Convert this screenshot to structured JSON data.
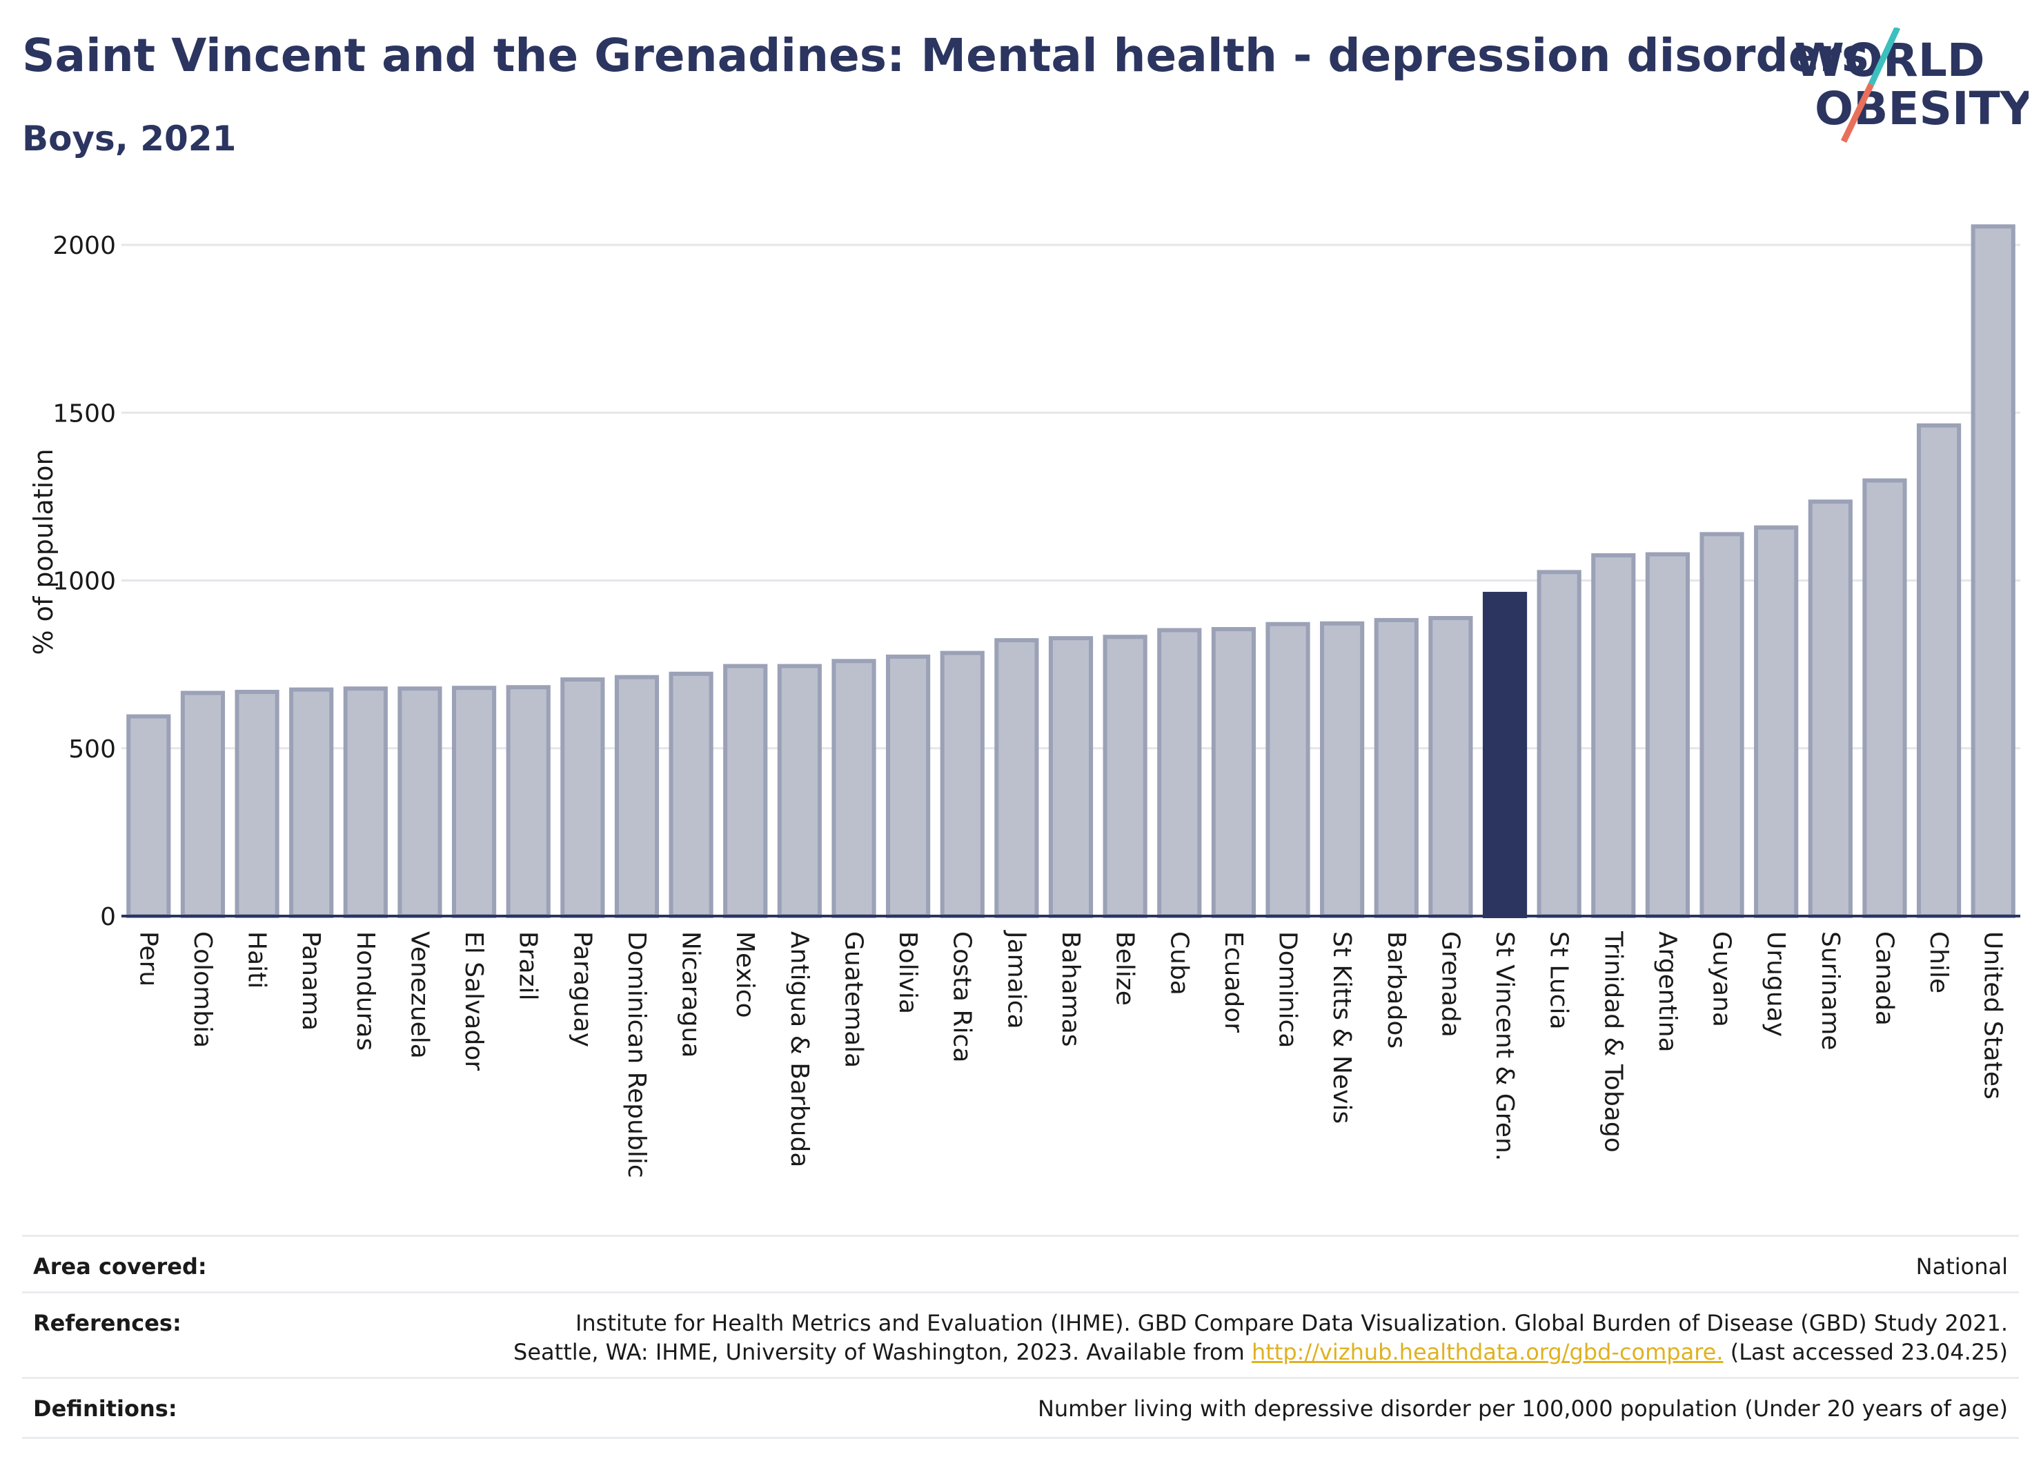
{
  "header": {
    "title": "Saint Vincent and the Grenadines: Mental health - depression disorders",
    "subtitle": "Boys, 2021"
  },
  "logo": {
    "line1": "WORLD",
    "line2": "OBESITY"
  },
  "colors": {
    "bar": "#bcc0cd",
    "bar_border": "#9ba1b6",
    "highlight": "#2b3560",
    "grid": "#e4e6ea",
    "accent_teal": "#3dbfbf",
    "accent_coral": "#e8705a"
  },
  "chart_data": {
    "type": "bar",
    "ylabel": "% of population",
    "xlabel": "",
    "ylim": [
      0,
      2100
    ],
    "yticks": [
      0,
      500,
      1000,
      1500,
      2000
    ],
    "grid": true,
    "highlight": "St Vincent & Gren.",
    "categories": [
      "Peru",
      "Colombia",
      "Haiti",
      "Panama",
      "Honduras",
      "Venezuela",
      "El Salvador",
      "Brazil",
      "Paraguay",
      "Dominican Republic",
      "Nicaragua",
      "Mexico",
      "Antigua & Barbuda",
      "Guatemala",
      "Bolivia",
      "Costa Rica",
      "Jamaica",
      "Bahamas",
      "Belize",
      "Cuba",
      "Ecuador",
      "Dominica",
      "St Kitts & Nevis",
      "Barbados",
      "Grenada",
      "St Vincent & Gren.",
      "St Lucia",
      "Trinidad & Tobago",
      "Argentina",
      "Guyana",
      "Uruguay",
      "Suriname",
      "Canada",
      "Chile",
      "United States"
    ],
    "values": [
      595,
      665,
      668,
      675,
      678,
      678,
      680,
      682,
      705,
      712,
      722,
      745,
      745,
      760,
      773,
      784,
      822,
      828,
      832,
      852,
      855,
      870,
      872,
      882,
      888,
      960,
      1025,
      1075,
      1078,
      1138,
      1158,
      1235,
      1298,
      1462,
      2055
    ]
  },
  "footer": {
    "area_label": "Area covered:",
    "area_value": "National",
    "ref_label": "References:",
    "ref_line1": "Institute for Health Metrics and Evaluation (IHME). GBD Compare Data Visualization. Global Burden of Disease (GBD) Study 2021.",
    "ref_line2_pre": "Seattle, WA: IHME, University of Washington, 2023. Available from ",
    "ref_link": "http://vizhub.healthdata.org/gbd-compare.",
    "ref_line2_post": " (Last accessed 23.04.25)",
    "def_label": "Definitions:",
    "def_value": "Number living with depressive disorder per 100,000 population (Under 20 years of age)"
  }
}
